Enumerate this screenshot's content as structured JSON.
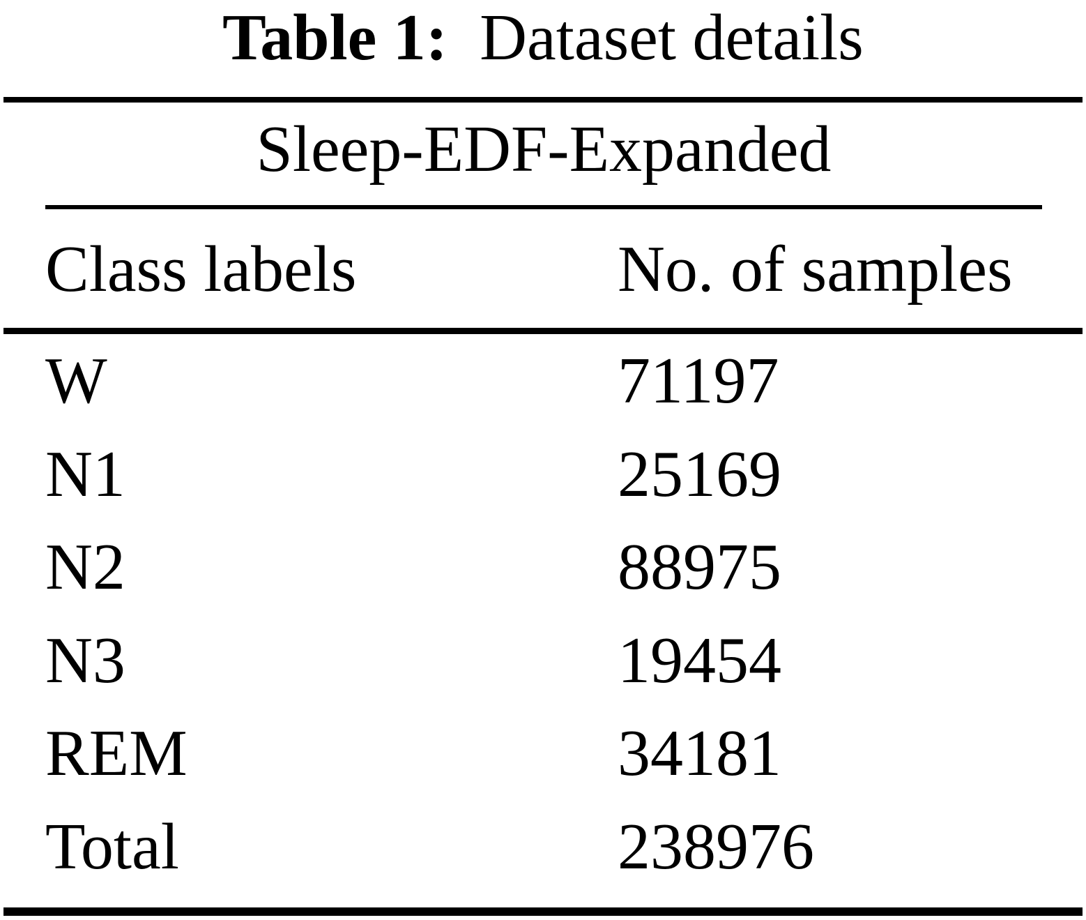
{
  "caption": {
    "label": "Table 1:",
    "title": "Dataset details"
  },
  "table": {
    "group_header": "Sleep-EDF-Expanded",
    "columns": {
      "class_labels": "Class labels",
      "num_samples": "No. of samples"
    },
    "rows": [
      {
        "label": "W",
        "value": "71197"
      },
      {
        "label": "N1",
        "value": "25169"
      },
      {
        "label": "N2",
        "value": "88975"
      },
      {
        "label": "N3",
        "value": "19454"
      },
      {
        "label": "REM",
        "value": "34181"
      },
      {
        "label": "Total",
        "value": "238976"
      }
    ]
  },
  "colors": {
    "background": "#ffffff",
    "text": "#000000",
    "rule": "#000000"
  },
  "chart_data": {
    "type": "table",
    "title": "Table 1: Dataset details",
    "group_header": "Sleep-EDF-Expanded",
    "columns": [
      "Class labels",
      "No. of samples"
    ],
    "rows": [
      [
        "W",
        71197
      ],
      [
        "N1",
        25169
      ],
      [
        "N2",
        88975
      ],
      [
        "N3",
        19454
      ],
      [
        "REM",
        34181
      ],
      [
        "Total",
        238976
      ]
    ],
    "total": 238976
  }
}
